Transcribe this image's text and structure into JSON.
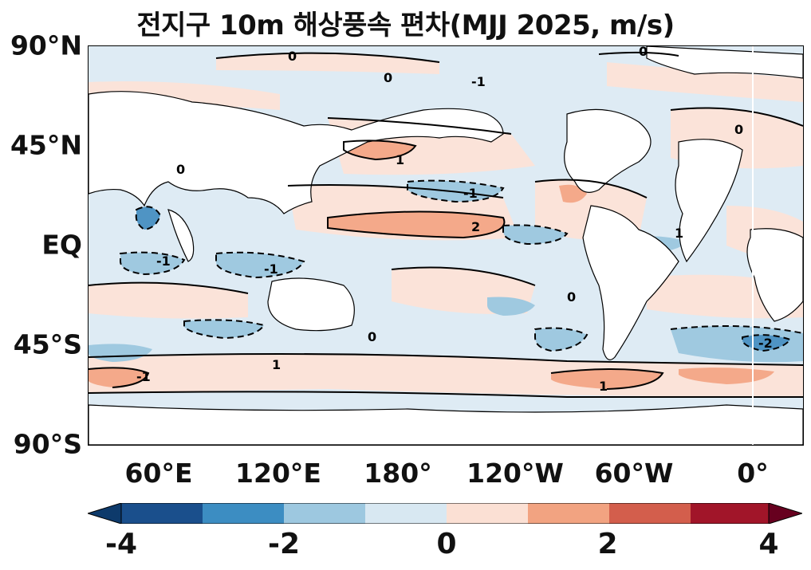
{
  "title": "전지구 10m 해상풍속 편차(MJJ 2025, m/s)",
  "y_ticks": [
    "90°N",
    "45°N",
    "EQ",
    "45°S",
    "90°S"
  ],
  "x_ticks": [
    "60°E",
    "120°E",
    "180°",
    "120°W",
    "60°W",
    "0°"
  ],
  "colorbar": {
    "ticks": [
      "-4",
      "-2",
      "0",
      "2",
      "4"
    ],
    "levels": [
      -4,
      -3,
      -2,
      -1,
      0,
      1,
      2,
      3,
      4
    ],
    "colors": [
      "#0d3a6b",
      "#1d5c9e",
      "#4393c3",
      "#92c5de",
      "#d1e5f0",
      "#fbe0d4",
      "#f4a582",
      "#d6604d",
      "#b2182b",
      "#67001f"
    ],
    "extend": "both"
  },
  "contour_labels": [
    "0",
    "-1",
    "1",
    "-2",
    "2"
  ],
  "colors": {
    "land": "#ffffff",
    "near_zero_negative": "#deebf4",
    "near_zero_positive": "#fbe3d9",
    "moderate_negative": "#9fc9e0",
    "moderate_positive": "#f4a98a",
    "strong_negative": "#4f94c4",
    "contour_line": "#000000"
  }
}
